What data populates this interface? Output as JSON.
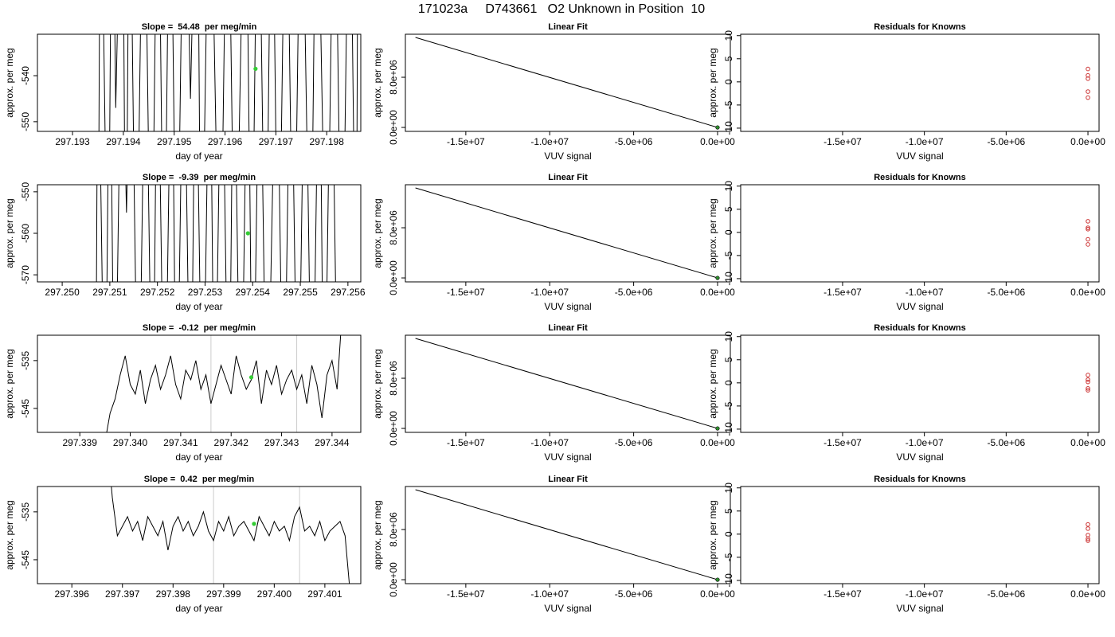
{
  "title": "171023a     D743661   O2 Unknown in Position  10",
  "chart_data": [
    {
      "type": "line",
      "title": "Slope =  54.48  per meg/min",
      "xlabel": "day of year",
      "ylabel": "approx. per meg",
      "xlim": [
        297.19231,
        297.19867
      ],
      "ylim": [
        -552.1,
        -531.0
      ],
      "xticks": [
        297.193,
        297.194,
        297.195,
        297.196,
        297.197,
        297.198
      ],
      "yticks": [
        -540,
        -550
      ],
      "series": [
        {
          "color": "#000000",
          "x": [
            297.1935,
            297.19355,
            297.1937,
            297.19378,
            297.19385,
            297.19398,
            297.19405,
            297.19412,
            297.19425,
            297.1944,
            297.19455,
            297.19468,
            297.1948,
            297.19492,
            297.19505,
            297.1952,
            297.19532,
            297.19545,
            297.19553,
            297.1957,
            297.1959,
            297.19605,
            297.1962,
            297.1964,
            297.19652,
            297.19665,
            297.1968,
            297.19692,
            297.19705,
            297.1972,
            297.19735,
            297.1975,
            297.19768,
            297.1978,
            297.198,
            297.19815,
            297.1983,
            297.19845,
            297.19858,
            297.19862
          ],
          "values": [
            -600,
            -480,
            -600,
            -480,
            -547,
            -480,
            -600,
            -480,
            -600,
            -480,
            -600,
            -480,
            -600,
            -480,
            -600,
            -480,
            -545,
            -480,
            -600,
            -480,
            -600,
            -480,
            -600,
            -480,
            -600,
            -480,
            -600,
            -480,
            -600,
            -480,
            -600,
            -480,
            -600,
            -480,
            -600,
            -480,
            -600,
            -480,
            -600,
            -480
          ]
        }
      ],
      "points": {
        "color": "#33cc33",
        "x": [
          297.1966
        ],
        "values": [
          -538.5
        ]
      }
    },
    {
      "type": "line",
      "title": "Linear Fit",
      "xlabel": "VUV signal",
      "ylabel": "approx. per meg",
      "xlim": [
        -18600000,
        760000
      ],
      "ylim": [
        -630000,
        14860000
      ],
      "xticks": [
        {
          "value": -15000000,
          "label": "-1.5e+07"
        },
        {
          "value": -10000000,
          "label": "-1.0e+07"
        },
        {
          "value": -5000000,
          "label": "-5.0e+06"
        },
        {
          "value": 0,
          "label": "0.0e+00"
        }
      ],
      "yticks": [
        {
          "value": 0,
          "label": "0.0e+00"
        },
        {
          "value": 8000000,
          "label": "8.0e+06"
        }
      ],
      "series": [
        {
          "color": "#000000",
          "x": [
            -18000000,
            0
          ],
          "values": [
            14350000,
            0
          ]
        }
      ],
      "points": {
        "color": "#2e8b2e",
        "x": [
          0
        ],
        "values": [
          0
        ]
      }
    },
    {
      "type": "scatter",
      "title": "Residuals for Knowns",
      "xlabel": "VUV signal",
      "ylabel": "approx. per meg",
      "xlim": [
        -21230000,
        680000
      ],
      "ylim": [
        -10.7,
        10.3
      ],
      "xticks": [
        {
          "value": -15000000,
          "label": "-1.5e+07"
        },
        {
          "value": -10000000,
          "label": "-1.0e+07"
        },
        {
          "value": -5000000,
          "label": "-5.0e+06"
        },
        {
          "value": 0,
          "label": "0.0e+00"
        }
      ],
      "yticks": [
        10,
        5,
        0,
        -5,
        -10
      ],
      "points": {
        "color": "#cc3333",
        "x": [
          0,
          0,
          0,
          0,
          0
        ],
        "values": [
          2.8,
          1.4,
          0.7,
          -2.1,
          -3.4
        ]
      }
    },
    {
      "type": "line",
      "title": "Slope =  -9.39  per meg/min",
      "xlabel": "day of year",
      "ylabel": "approx. per meg",
      "xlim": [
        297.24948,
        297.25627
      ],
      "ylim": [
        -571.7,
        -548.3
      ],
      "xticks": [
        {
          "value": 297.25,
          "label": "297.250"
        },
        297.251,
        297.252,
        297.253,
        297.254,
        297.255,
        297.256
      ],
      "yticks": [
        -550,
        -560,
        -570
      ],
      "series": [
        {
          "color": "#000000",
          "x": [
            297.2507,
            297.25075,
            297.2509,
            297.251,
            297.2511,
            297.25125,
            297.25135,
            297.25145,
            297.2516,
            297.25175,
            297.2519,
            297.252,
            297.25215,
            297.2523,
            297.2524,
            297.25255,
            297.2527,
            297.2528,
            297.25295,
            297.2531,
            297.2532,
            297.25335,
            297.2535,
            297.2536,
            297.25375,
            297.2539,
            297.254,
            297.25415,
            297.2543,
            297.2545,
            297.25465,
            297.2548,
            297.25495,
            297.2551,
            297.25525,
            297.2554,
            297.2555,
            297.25565,
            297.2558
          ],
          "values": [
            -620,
            -500,
            -620,
            -500,
            -620,
            -500,
            -555,
            -500,
            -620,
            -500,
            -620,
            -500,
            -620,
            -500,
            -620,
            -500,
            -620,
            -500,
            -620,
            -500,
            -620,
            -500,
            -620,
            -500,
            -620,
            -500,
            -620,
            -500,
            -620,
            -500,
            -620,
            -500,
            -620,
            -500,
            -620,
            -500,
            -620,
            -500,
            -620
          ]
        }
      ],
      "points": {
        "color": "#33cc33",
        "x": [
          297.2539
        ],
        "values": [
          -560
        ]
      }
    },
    {
      "type": "line",
      "title": "Linear Fit",
      "xlabel": "VUV signal",
      "ylabel": "approx. per meg",
      "xlim": [
        -18600000,
        760000
      ],
      "ylim": [
        -630000,
        14860000
      ],
      "xticks": [
        {
          "value": -15000000,
          "label": "-1.5e+07"
        },
        {
          "value": -10000000,
          "label": "-1.0e+07"
        },
        {
          "value": -5000000,
          "label": "-5.0e+06"
        },
        {
          "value": 0,
          "label": "0.0e+00"
        }
      ],
      "yticks": [
        {
          "value": 0,
          "label": "0.0e+00"
        },
        {
          "value": 8000000,
          "label": "8.0e+06"
        }
      ],
      "series": [
        {
          "color": "#000000",
          "x": [
            -18000000,
            0
          ],
          "values": [
            14350000,
            0
          ]
        }
      ],
      "points": {
        "color": "#2e8b2e",
        "x": [
          0
        ],
        "values": [
          0
        ]
      }
    },
    {
      "type": "scatter",
      "title": "Residuals for Knowns",
      "xlabel": "VUV signal",
      "ylabel": "approx. per meg",
      "xlim": [
        -21230000,
        680000
      ],
      "ylim": [
        -10.7,
        10.3
      ],
      "xticks": [
        {
          "value": -15000000,
          "label": "-1.5e+07"
        },
        {
          "value": -10000000,
          "label": "-1.0e+07"
        },
        {
          "value": -5000000,
          "label": "-5.0e+06"
        },
        {
          "value": 0,
          "label": "0.0e+00"
        }
      ],
      "yticks": [
        10,
        5,
        0,
        -5,
        -10
      ],
      "points": {
        "color": "#cc3333",
        "x": [
          0,
          0,
          0,
          0,
          0
        ],
        "values": [
          2.4,
          1.0,
          0.7,
          -1.5,
          -2.6
        ]
      }
    },
    {
      "type": "line",
      "title": "Slope =  -0.12  per meg/min",
      "xlabel": "day of year",
      "ylabel": "approx. per meg",
      "xlim": [
        297.33816,
        297.34457
      ],
      "ylim": [
        -550.0,
        -529.7
      ],
      "xticks": [
        297.339,
        {
          "value": 297.34,
          "label": "297.340"
        },
        297.341,
        297.342,
        297.343,
        297.344
      ],
      "yticks": [
        -535,
        -545
      ],
      "series": [
        {
          "color": "#000000",
          "x": [
            297.3395,
            297.3396,
            297.3397,
            297.3398,
            297.3399,
            297.34,
            297.3401,
            297.3402,
            297.3403,
            297.3404,
            297.3405,
            297.3406,
            297.3407,
            297.3408,
            297.3409,
            297.341,
            297.3411,
            297.3412,
            297.3413,
            297.3414,
            297.3415,
            297.3416,
            297.3417,
            297.3418,
            297.3419,
            297.342,
            297.3421,
            297.3422,
            297.3423,
            297.3424,
            297.3425,
            297.3426,
            297.3427,
            297.3428,
            297.3429,
            297.343,
            297.3431,
            297.3432,
            297.3433,
            297.3434,
            297.3435,
            297.3436,
            297.3437,
            297.3438,
            297.3439,
            297.344,
            297.3441,
            297.3442
          ],
          "values": [
            -552,
            -546,
            -543,
            -538,
            -534,
            -540,
            -542,
            -537,
            -544,
            -539,
            -536,
            -541,
            -538,
            -534,
            -540,
            -543,
            -537,
            -539,
            -535,
            -541,
            -538,
            -544,
            -540,
            -536,
            -539,
            -542,
            -534,
            -538,
            -541,
            -539,
            -535,
            -544,
            -537,
            -540,
            -536,
            -542,
            -539,
            -537,
            -541,
            -538,
            -544,
            -536,
            -540,
            -547,
            -538,
            -535,
            -541,
            -525
          ]
        }
      ],
      "vlines": {
        "color": "#cccccc",
        "x": [
          297.3416,
          297.3433
        ]
      },
      "points": {
        "color": "#33cc33",
        "x": [
          297.3424
        ],
        "values": [
          -538.5
        ]
      }
    },
    {
      "type": "line",
      "title": "Linear Fit",
      "xlabel": "VUV signal",
      "ylabel": "approx. per meg",
      "xlim": [
        -18600000,
        760000
      ],
      "ylim": [
        -630000,
        14860000
      ],
      "xticks": [
        {
          "value": -15000000,
          "label": "-1.5e+07"
        },
        {
          "value": -10000000,
          "label": "-1.0e+07"
        },
        {
          "value": -5000000,
          "label": "-5.0e+06"
        },
        {
          "value": 0,
          "label": "0.0e+00"
        }
      ],
      "yticks": [
        {
          "value": 0,
          "label": "0.0e+00"
        },
        {
          "value": 8000000,
          "label": "8.0e+06"
        }
      ],
      "series": [
        {
          "color": "#000000",
          "x": [
            -18000000,
            0
          ],
          "values": [
            14350000,
            0
          ]
        }
      ],
      "points": {
        "color": "#2e8b2e",
        "x": [
          0
        ],
        "values": [
          0
        ]
      }
    },
    {
      "type": "scatter",
      "title": "Residuals for Knowns",
      "xlabel": "VUV signal",
      "ylabel": "approx. per meg",
      "xlim": [
        -21230000,
        680000
      ],
      "ylim": [
        -10.7,
        10.3
      ],
      "xticks": [
        {
          "value": -15000000,
          "label": "-1.5e+07"
        },
        {
          "value": -10000000,
          "label": "-1.0e+07"
        },
        {
          "value": -5000000,
          "label": "-5.0e+06"
        },
        {
          "value": 0,
          "label": "0.0e+00"
        }
      ],
      "yticks": [
        10,
        5,
        0,
        -5,
        -10
      ],
      "points": {
        "color": "#cc3333",
        "x": [
          0,
          0,
          0,
          0,
          0
        ],
        "values": [
          1.7,
          0.7,
          0.2,
          -1.2,
          -1.6
        ]
      }
    },
    {
      "type": "line",
      "title": "Slope =  0.42  per meg/min",
      "xlabel": "day of year",
      "ylabel": "approx. per meg",
      "xlim": [
        297.39532,
        297.40171
      ],
      "ylim": [
        -550.0,
        -529.7
      ],
      "xticks": [
        297.396,
        297.397,
        297.398,
        297.399,
        {
          "value": 297.4,
          "label": "297.400"
        },
        297.401
      ],
      "yticks": [
        -535,
        -545
      ],
      "series": [
        {
          "color": "#000000",
          "x": [
            297.3967,
            297.3968,
            297.3969,
            297.397,
            297.3971,
            297.3972,
            297.3973,
            297.3974,
            297.3975,
            297.3976,
            297.3977,
            297.3978,
            297.3979,
            297.398,
            297.3981,
            297.3982,
            297.3983,
            297.3984,
            297.3985,
            297.3986,
            297.3987,
            297.3988,
            297.3989,
            297.399,
            297.3991,
            297.3992,
            297.3993,
            297.3994,
            297.3995,
            297.3996,
            297.3997,
            297.3998,
            297.3999,
            297.4,
            297.4001,
            297.4002,
            297.4003,
            297.4004,
            297.4005,
            297.4006,
            297.4007,
            297.4008,
            297.4009,
            297.401,
            297.4011,
            297.4012,
            297.4013,
            297.4014,
            297.4015
          ],
          "values": [
            -520,
            -532,
            -540,
            -538,
            -536,
            -539,
            -537,
            -541,
            -536,
            -538,
            -540,
            -537,
            -543,
            -538,
            -536,
            -539,
            -537,
            -540,
            -538,
            -535,
            -539,
            -541,
            -537,
            -539,
            -536,
            -540,
            -538,
            -537,
            -539,
            -541,
            -536,
            -538,
            -540,
            -537,
            -539,
            -538,
            -541,
            -536,
            -534,
            -539,
            -538,
            -540,
            -537,
            -541,
            -539,
            -538,
            -537,
            -540,
            -552
          ]
        }
      ],
      "vlines": {
        "color": "#cccccc",
        "x": [
          297.3988,
          297.4005
        ]
      },
      "points": {
        "color": "#33cc33",
        "x": [
          297.3996
        ],
        "values": [
          -537.5
        ]
      }
    },
    {
      "type": "line",
      "title": "Linear Fit",
      "xlabel": "VUV signal",
      "ylabel": "approx. per meg",
      "xlim": [
        -18600000,
        760000
      ],
      "ylim": [
        -630000,
        14860000
      ],
      "xticks": [
        {
          "value": -15000000,
          "label": "-1.5e+07"
        },
        {
          "value": -10000000,
          "label": "-1.0e+07"
        },
        {
          "value": -5000000,
          "label": "-5.0e+06"
        },
        {
          "value": 0,
          "label": "0.0e+00"
        }
      ],
      "yticks": [
        {
          "value": 0,
          "label": "0.0e+00"
        },
        {
          "value": 8000000,
          "label": "8.0e+06"
        }
      ],
      "series": [
        {
          "color": "#000000",
          "x": [
            -18000000,
            0
          ],
          "values": [
            14350000,
            0
          ]
        }
      ],
      "points": {
        "color": "#2e8b2e",
        "x": [
          0
        ],
        "values": [
          0
        ]
      }
    },
    {
      "type": "scatter",
      "title": "Residuals for Knowns",
      "xlabel": "VUV signal",
      "ylabel": "approx. per meg",
      "xlim": [
        -21230000,
        680000
      ],
      "ylim": [
        -10.7,
        10.3
      ],
      "xticks": [
        {
          "value": -15000000,
          "label": "-1.5e+07"
        },
        {
          "value": -10000000,
          "label": "-1.0e+07"
        },
        {
          "value": -5000000,
          "label": "-5.0e+06"
        },
        {
          "value": 0,
          "label": "0.0e+00"
        }
      ],
      "yticks": [
        10,
        5,
        0,
        -5,
        -10
      ],
      "points": {
        "color": "#cc3333",
        "x": [
          0,
          0,
          0,
          0,
          0
        ],
        "values": [
          2.1,
          1.2,
          -0.2,
          -1.0,
          -1.4
        ]
      }
    }
  ]
}
